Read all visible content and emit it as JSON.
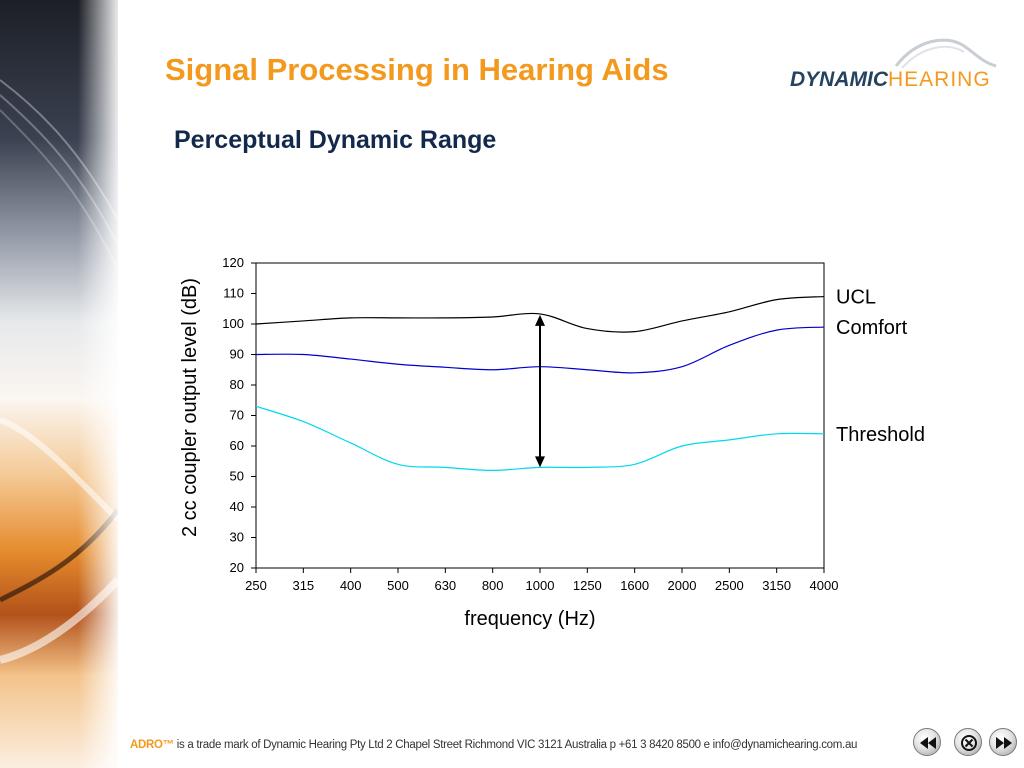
{
  "slide": {
    "title": "Signal Processing in Hearing Aids",
    "subtitle": "Perceptual Dynamic Range"
  },
  "logo": {
    "word1": "DYNAMIC",
    "word2": "HEARING"
  },
  "chart_data": {
    "type": "line",
    "xlabel": "frequency (Hz)",
    "ylabel": "2 cc coupler output level (dB)",
    "categories": [
      "250",
      "315",
      "400",
      "500",
      "630",
      "800",
      "1000",
      "1250",
      "1600",
      "2000",
      "2500",
      "3150",
      "4000"
    ],
    "ylim": [
      20,
      120
    ],
    "yticks": [
      20,
      30,
      40,
      50,
      60,
      70,
      80,
      90,
      100,
      110,
      120
    ],
    "grid": false,
    "series": [
      {
        "name": "UCL",
        "color": "#000000",
        "values": [
          100,
          101,
          102,
          102,
          102,
          102.3,
          103.3,
          98.5,
          97.5,
          101,
          104,
          108,
          109
        ]
      },
      {
        "name": "Comfort",
        "color": "#0000cc",
        "values": [
          90,
          90,
          88.5,
          86.8,
          85.8,
          85,
          86,
          85,
          84,
          86,
          93,
          98,
          99
        ]
      },
      {
        "name": "Threshold",
        "color": "#00d8f0",
        "values": [
          73,
          68,
          61,
          54,
          53,
          52,
          53,
          53,
          54,
          60,
          62,
          64,
          64
        ]
      }
    ],
    "annotation": {
      "type": "double-arrow",
      "category": "1000",
      "from": 53,
      "to": 103
    }
  },
  "footer": {
    "trademark": "ADRO™",
    "text": " is a trade mark of Dynamic Hearing Pty Ltd  2 Chapel Street Richmond VIC 3121 Australia p +61 3 8420 8500  e info@dynamichearing.com.au"
  },
  "nav": {
    "previous_icon": "rewind-icon",
    "close_icon": "close-icon",
    "next_icon": "fast-forward-icon"
  }
}
